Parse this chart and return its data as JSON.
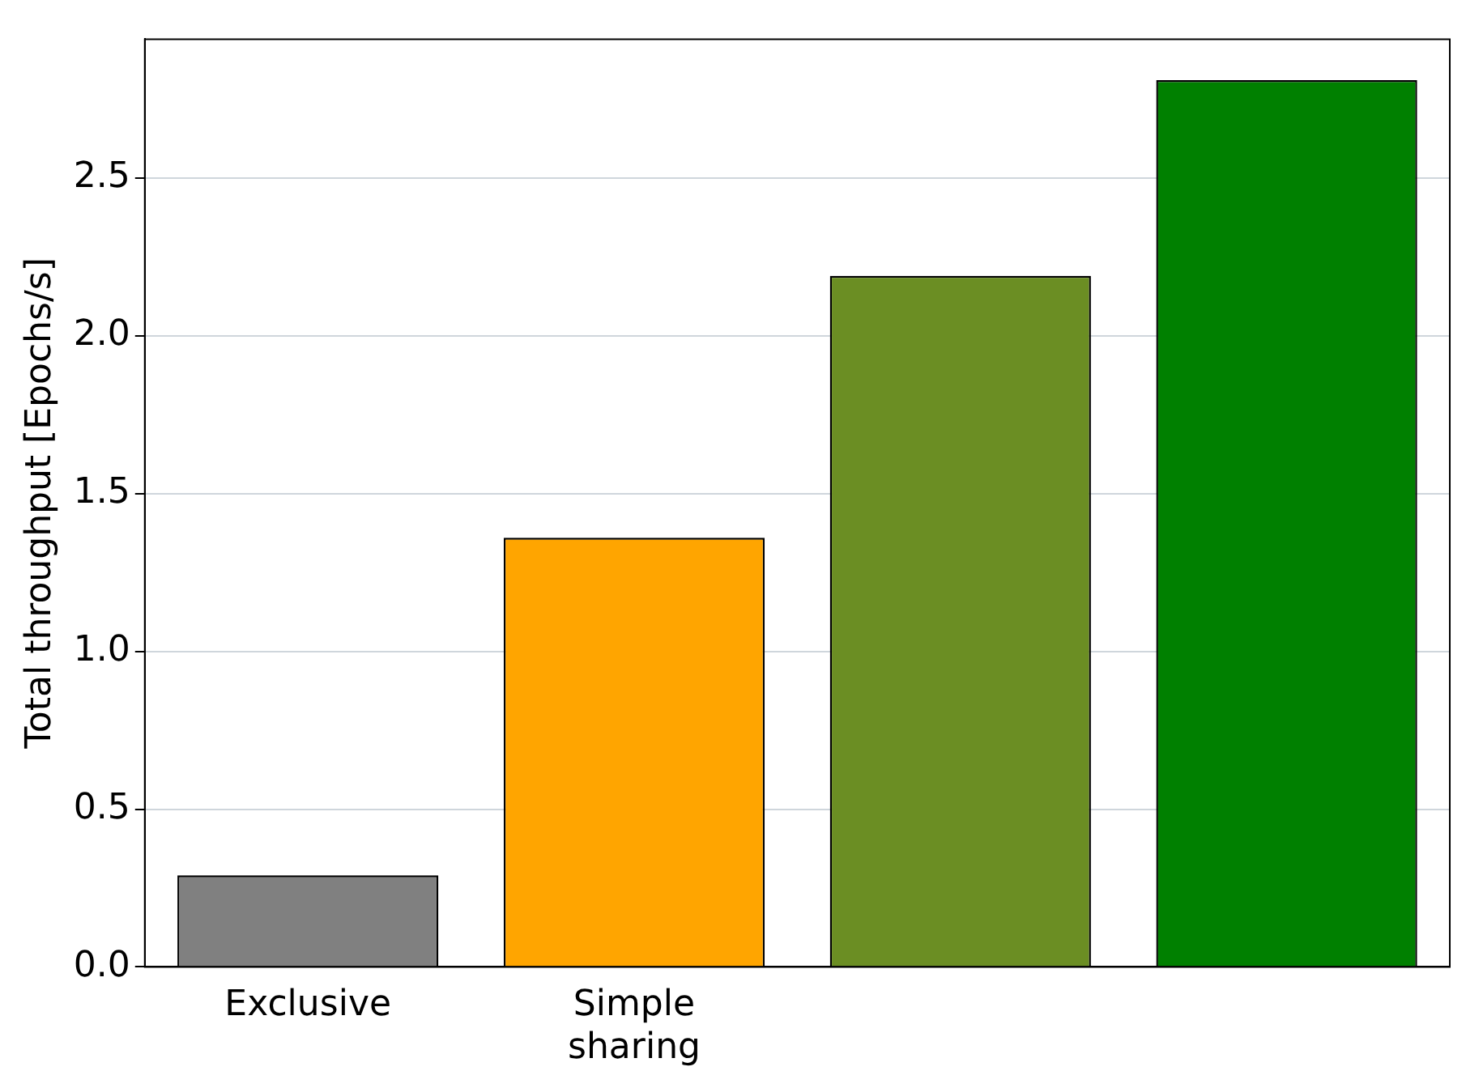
{
  "chart_data": {
    "type": "bar",
    "ylabel": "Total throughput [Epochs/s]",
    "categories": [
      "Exclusive",
      "Simple sharing",
      null,
      null
    ],
    "values": [
      0.29,
      1.36,
      2.19,
      2.81
    ],
    "colors": [
      "#808080",
      "#ffa500",
      "#6b8e23",
      "#008000"
    ],
    "ylim": [
      0,
      2.94
    ],
    "yticks": [
      {
        "value": 0,
        "label": "0.0"
      },
      {
        "value": 0.5,
        "label": "0.5"
      },
      {
        "value": 1,
        "label": "1.0"
      },
      {
        "value": 1.5,
        "label": "1.5"
      },
      {
        "value": 2,
        "label": "2.0"
      },
      {
        "value": 2.5,
        "label": "2.5"
      }
    ],
    "grid": "y",
    "legend": false
  }
}
